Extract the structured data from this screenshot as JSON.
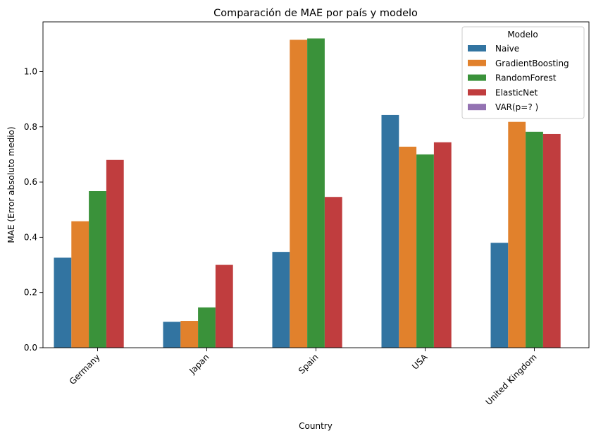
{
  "chart_data": {
    "type": "bar",
    "title": "Comparación de MAE por país y modelo",
    "xlabel": "Country",
    "ylabel": "MAE (Error absoluto medio)",
    "categories": [
      "Germany",
      "Japan",
      "Spain",
      "USA",
      "United Kingdom"
    ],
    "ylim": [
      0,
      1.18
    ],
    "yticks": [
      0.0,
      0.2,
      0.4,
      0.6,
      0.8,
      1.0
    ],
    "ytick_labels": [
      "0.0",
      "0.2",
      "0.4",
      "0.6",
      "0.8",
      "1.0"
    ],
    "grid": false,
    "xtick_rotation": 45,
    "legend": {
      "title": "Modelo",
      "placement": "top-right"
    },
    "series": [
      {
        "name": "Naive",
        "color": "#3274a1",
        "values": [
          0.326,
          0.094,
          0.347,
          0.843,
          0.38
        ]
      },
      {
        "name": "GradientBoosting",
        "color": "#e1812c",
        "values": [
          0.458,
          0.097,
          1.115,
          0.728,
          0.818
        ]
      },
      {
        "name": "RandomForest",
        "color": "#3a923a",
        "values": [
          0.567,
          0.146,
          1.12,
          0.7,
          0.782
        ]
      },
      {
        "name": "ElasticNet",
        "color": "#c03d3e",
        "values": [
          0.68,
          0.3,
          0.546,
          0.744,
          0.774
        ]
      },
      {
        "name": "VAR(p=? )",
        "color": "#9372b2",
        "values": [
          null,
          null,
          null,
          null,
          null
        ]
      }
    ]
  }
}
